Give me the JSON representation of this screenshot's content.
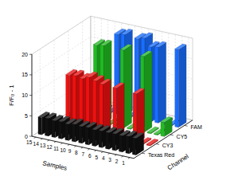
{
  "chart_data": {
    "type": "bar3d",
    "xlabel": "Samples",
    "ylabel": "Channel",
    "zlabel": "F/F₀ - 1",
    "categories": [
      "15",
      "14",
      "13",
      "12",
      "11",
      "10",
      "9",
      "8",
      "7",
      "6",
      "5",
      "4",
      "3",
      "2",
      "1"
    ],
    "series": [
      {
        "name": "FAM",
        "color": "#1a6eff",
        "values": [
          0.3,
          0.3,
          0.3,
          0.3,
          0.3,
          19.5,
          19.8,
          0.3,
          19.5,
          20.0,
          18.2,
          18.5,
          0.3,
          0.3,
          19.0
        ]
      },
      {
        "name": "CY5",
        "color": "#22bb22",
        "values": [
          0.3,
          0.3,
          0.3,
          0.3,
          18.8,
          19.0,
          0.3,
          0.3,
          19.0,
          0.3,
          4.0,
          18.5,
          0.3,
          0.3,
          3.5
        ]
      },
      {
        "name": "CY3",
        "color": "#ee1111",
        "values": [
          0.3,
          0.3,
          13.0,
          13.2,
          12.8,
          13.5,
          13.0,
          12.5,
          0.3,
          12.3,
          0.3,
          0.3,
          12.0,
          0.3,
          0.3
        ]
      },
      {
        "name": "Texas Red",
        "color": "#111111",
        "values": [
          4.2,
          4.3,
          4.1,
          4.2,
          4.0,
          4.3,
          4.1,
          4.2,
          4.0,
          4.1,
          4.0,
          4.1,
          4.0,
          4.2,
          4.1
        ]
      }
    ],
    "zlim": [
      0,
      20
    ],
    "zticks": [
      0,
      5,
      10,
      15,
      20
    ],
    "grid": true
  }
}
